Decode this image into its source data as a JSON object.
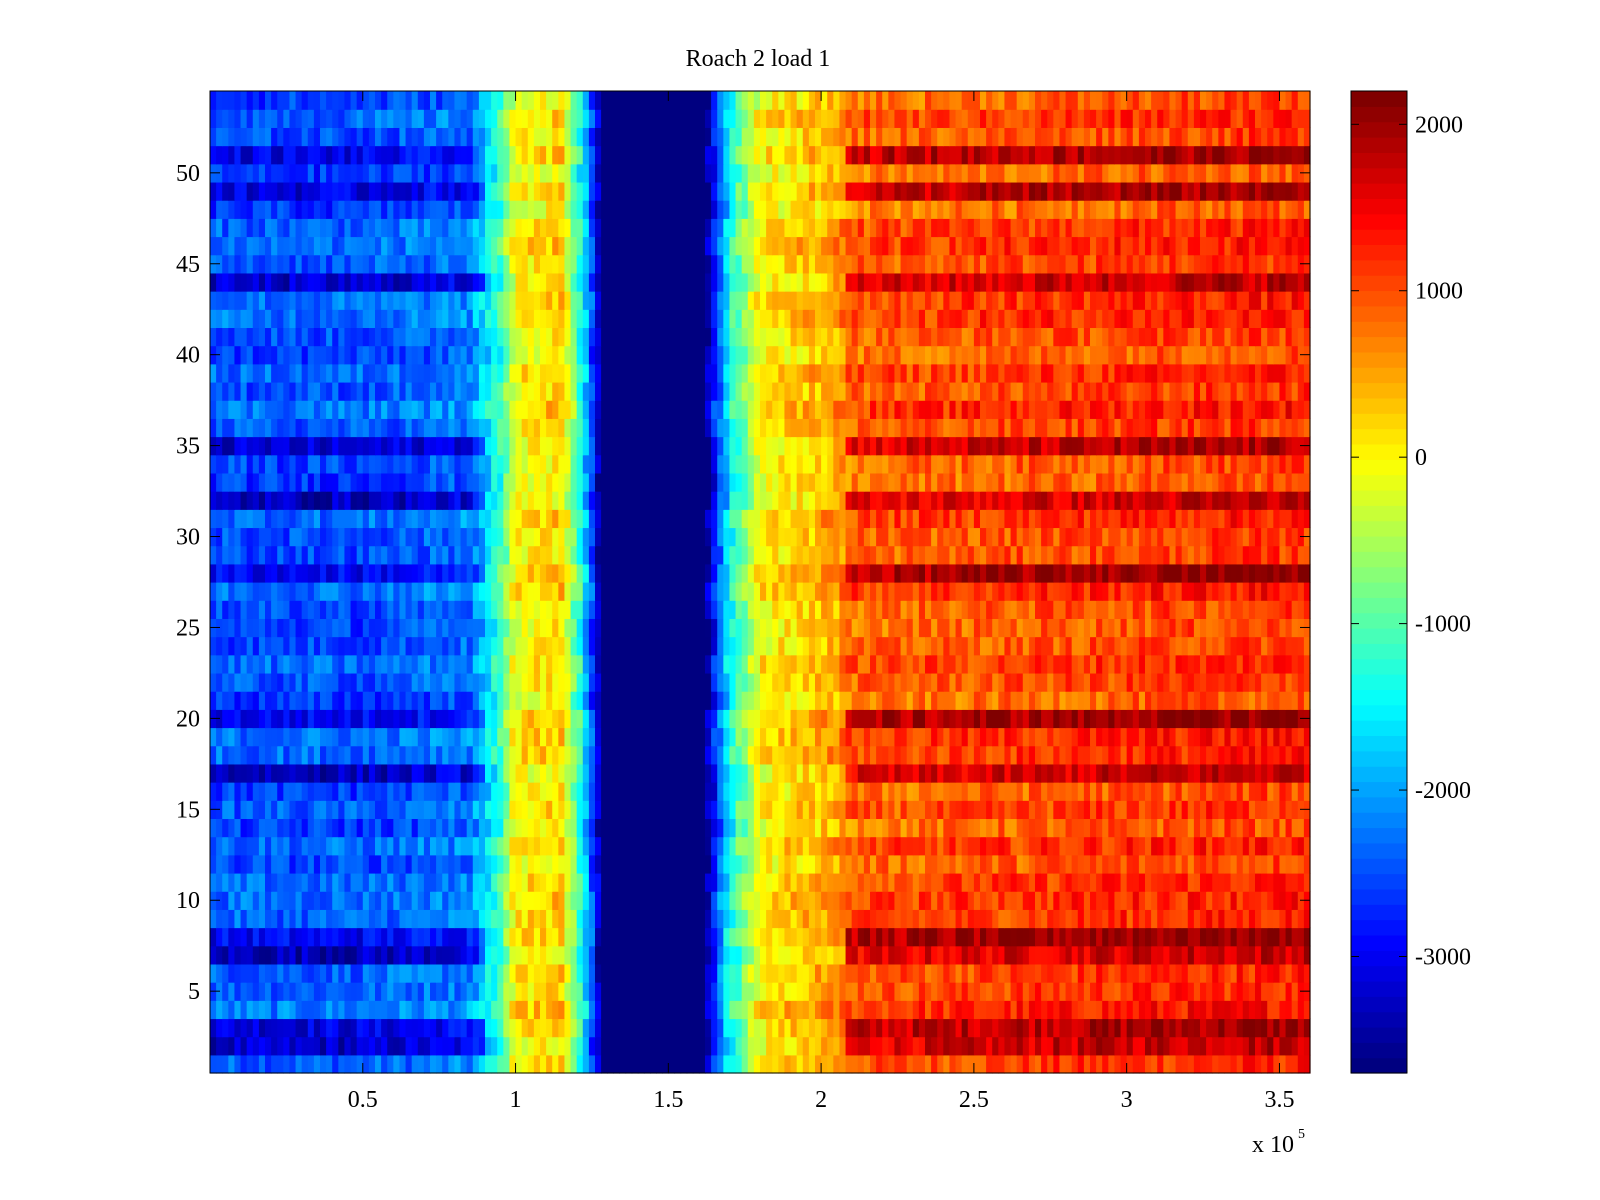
{
  "chart_data": {
    "type": "heatmap",
    "title": "Roach 2 load 1",
    "xlabel": "",
    "ylabel": "",
    "x_multiplier_label": "x 10",
    "x_multiplier_exponent": "5",
    "xlim": [
      0,
      3.6
    ],
    "ylim": [
      0.5,
      54.5
    ],
    "x_ticks": [
      0.5,
      1,
      1.5,
      2,
      2.5,
      3,
      3.5
    ],
    "x_tick_labels": [
      "0.5",
      "1",
      "1.5",
      "2",
      "2.5",
      "3",
      "3.5"
    ],
    "y_ticks": [
      5,
      10,
      15,
      20,
      25,
      30,
      35,
      40,
      45,
      50
    ],
    "y_tick_labels": [
      "5",
      "10",
      "15",
      "20",
      "25",
      "30",
      "35",
      "40",
      "45",
      "50"
    ],
    "colorbar": {
      "colormap": "jet",
      "clim": [
        -3700,
        2200
      ],
      "ticks": [
        2000,
        1000,
        0,
        -1000,
        -2000,
        -3000
      ],
      "tick_labels": [
        "2000",
        "1000",
        "0",
        "-1000",
        "-2000",
        "-3000"
      ]
    },
    "rows": 54,
    "x_range_units": "x 10^5",
    "column_profile": [
      {
        "x": 0.0,
        "value": -2500
      },
      {
        "x": 0.5,
        "value": -2500
      },
      {
        "x": 0.85,
        "value": -2300
      },
      {
        "x": 0.95,
        "value": -1200
      },
      {
        "x": 1.0,
        "value": 0
      },
      {
        "x": 1.15,
        "value": 200
      },
      {
        "x": 1.22,
        "value": -1500
      },
      {
        "x": 1.28,
        "value": -3700
      },
      {
        "x": 1.62,
        "value": -3700
      },
      {
        "x": 1.7,
        "value": -1500
      },
      {
        "x": 1.8,
        "value": 0
      },
      {
        "x": 2.05,
        "value": 500
      },
      {
        "x": 2.1,
        "value": 900
      },
      {
        "x": 3.0,
        "value": 1100
      },
      {
        "x": 3.6,
        "value": 1200
      }
    ],
    "dark_rows": [
      2,
      3,
      7,
      8,
      17,
      20,
      28,
      32,
      35,
      44,
      49,
      51
    ],
    "grid": false,
    "legend": "none"
  }
}
